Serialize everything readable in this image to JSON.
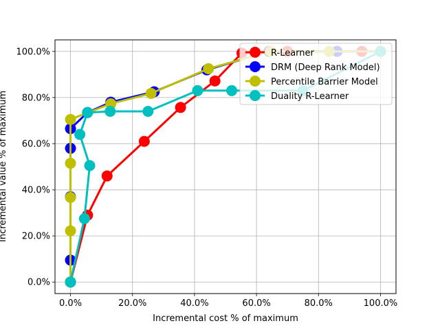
{
  "chart_data": {
    "type": "line",
    "title": "",
    "xlabel": "Incremental cost % of maximum",
    "ylabel": "Incremental value % of maximum",
    "xlim": [
      -0.05,
      1.05
    ],
    "ylim": [
      -0.05,
      1.05
    ],
    "x_ticks": [
      0.0,
      0.2,
      0.4,
      0.6,
      0.8,
      1.0
    ],
    "y_ticks": [
      0.0,
      0.2,
      0.4,
      0.6,
      0.8,
      1.0
    ],
    "x_tick_labels": [
      "0.0%",
      "20.0%",
      "40.0%",
      "60.0%",
      "80.0%",
      "100.0%"
    ],
    "y_tick_labels": [
      "0.0%",
      "20.0%",
      "40.0%",
      "60.0%",
      "80.0%",
      "100.0%"
    ],
    "grid": true,
    "legend_position": "upper-right",
    "series": [
      {
        "name": "R-Learner",
        "color": "#ff0000",
        "x": [
          0.0,
          0.055,
          0.118,
          0.238,
          0.355,
          0.466,
          0.553,
          0.64,
          0.7,
          0.94,
          1.0
        ],
        "y": [
          0.0,
          0.29,
          0.46,
          0.61,
          0.757,
          0.872,
          0.993,
          1.0,
          1.0,
          1.0,
          1.0
        ]
      },
      {
        "name": "DRM (Deep Rank Model)",
        "color": "#0000ff",
        "x": [
          0.0,
          0.0,
          0.0,
          0.0,
          0.0,
          0.055,
          0.13,
          0.27,
          0.44,
          0.64,
          0.86,
          1.0
        ],
        "y": [
          0.0,
          0.095,
          0.37,
          0.58,
          0.665,
          0.735,
          0.78,
          0.825,
          0.92,
          1.0,
          1.0,
          1.0
        ]
      },
      {
        "name": "Percentile Barrier Model",
        "color": "#bfbf00",
        "x": [
          0.0,
          0.0,
          0.0,
          0.0,
          0.0,
          0.13,
          0.26,
          0.445,
          0.645,
          0.835,
          1.0
        ],
        "y": [
          0.0,
          0.222,
          0.367,
          0.515,
          0.705,
          0.773,
          0.818,
          0.925,
          1.0,
          1.0,
          1.0
        ]
      },
      {
        "name": "Duality R-Learner",
        "color": "#00bfbf",
        "x": [
          0.0,
          0.045,
          0.062,
          0.03,
          0.055,
          0.128,
          0.25,
          0.41,
          0.52,
          0.75,
          1.0
        ],
        "y": [
          0.0,
          0.275,
          0.505,
          0.64,
          0.735,
          0.74,
          0.74,
          0.83,
          0.83,
          0.83,
          1.0
        ]
      }
    ]
  }
}
